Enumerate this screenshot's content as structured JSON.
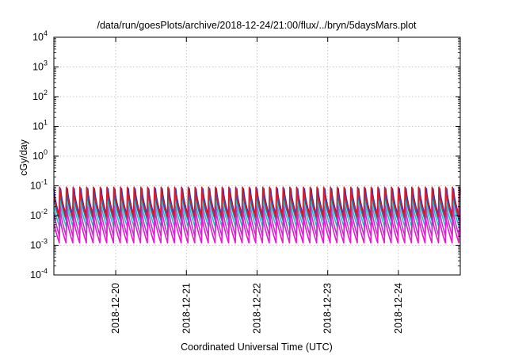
{
  "chart_data": {
    "type": "line",
    "title": "/data/run/goesPlots/archive/2018-12-24/21:00/flux/../bryn/5daysMars.plot",
    "xlabel": "Coordinated Universal Time (UTC)",
    "ylabel": "cGy/day",
    "yscale": "log",
    "ylim": [
      0.0001,
      10000
    ],
    "y_ticks": [
      {
        "base": "10",
        "exp": "4"
      },
      {
        "base": "10",
        "exp": "3"
      },
      {
        "base": "10",
        "exp": "2"
      },
      {
        "base": "10",
        "exp": "1"
      },
      {
        "base": "10",
        "exp": "0"
      },
      {
        "base": "10",
        "exp": "-1"
      },
      {
        "base": "10",
        "exp": "-2"
      },
      {
        "base": "10",
        "exp": "-3"
      },
      {
        "base": "10",
        "exp": "-4"
      }
    ],
    "x_ticks": [
      "2018-12-20",
      "2018-12-21",
      "2018-12-22",
      "2018-12-23",
      "2018-12-24"
    ],
    "xlim": [
      "2018-12-19 03:00",
      "2018-12-24 21:00"
    ],
    "grid": true,
    "legend": "none",
    "series_style": "sawtooth, period about 2.3 hours, sharp rise then decay",
    "series": [
      {
        "color": "#1a2fd8",
        "peak": 0.08,
        "trough": 0.008
      },
      {
        "color": "#2a7ab8",
        "peak": 0.05,
        "trough": 0.006
      },
      {
        "color": "#19c8c0",
        "peak": 0.03,
        "trough": 0.004
      },
      {
        "color": "#b83ac8",
        "peak": 0.02,
        "trough": 0.002
      },
      {
        "color": "#e81ad0",
        "peak": 0.01,
        "trough": 0.0012
      },
      {
        "color": "#d81a2a",
        "peak": 0.09,
        "trough": 0.009
      }
    ]
  }
}
